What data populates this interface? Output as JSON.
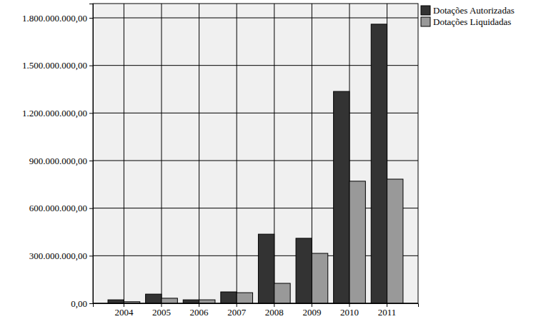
{
  "chart_data": {
    "type": "bar",
    "categories": [
      "2004",
      "2005",
      "2006",
      "2007",
      "2008",
      "2009",
      "2010",
      "2011"
    ],
    "series": [
      {
        "name": "Dotações Autorizadas",
        "color": "#333333",
        "values": [
          22000000,
          58000000,
          22000000,
          72000000,
          436000000,
          410000000,
          1336000000,
          1760000000
        ]
      },
      {
        "name": "Dotações Liquidadas",
        "color": "#999999",
        "values": [
          10000000,
          32000000,
          22000000,
          67000000,
          126000000,
          315000000,
          770000000,
          783000000
        ]
      }
    ],
    "ylim": [
      0,
      1890000000
    ],
    "yticks": [
      {
        "value": 0,
        "label": "0,00"
      },
      {
        "value": 300000000,
        "label": "300.000.000,00"
      },
      {
        "value": 600000000,
        "label": "600.000.000,00"
      },
      {
        "value": 900000000,
        "label": "900.000.000,00"
      },
      {
        "value": 1200000000,
        "label": "1.200.000.000,00"
      },
      {
        "value": 1500000000,
        "label": "1.500.000.000,00"
      },
      {
        "value": 1800000000,
        "label": "1.800.000.000,00"
      }
    ],
    "grid": true,
    "legend": "top-right"
  }
}
